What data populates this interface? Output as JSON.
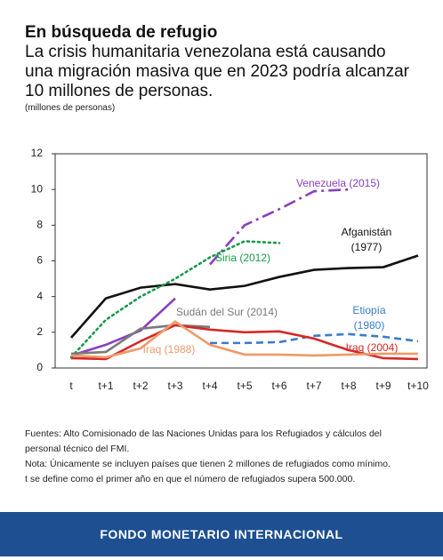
{
  "chart_data": {
    "type": "line",
    "title": "En búsqueda de refugio",
    "subtitle": "La crisis humanitaria venezolana está causando una migración masiva que en 2023 podría alcanzar 10 millones de personas.",
    "y_label": "(millones de personas)",
    "categories": [
      "t",
      "t+1",
      "t+2",
      "t+3",
      "t+4",
      "t+5",
      "t+6",
      "t+7",
      "t+8",
      "t+9",
      "t+10"
    ],
    "ylim": [
      0,
      12
    ],
    "yticks": [
      0,
      2,
      4,
      6,
      8,
      10,
      12
    ],
    "grid": false,
    "series": [
      {
        "name": "Afganistán (1977)",
        "color": "#111111",
        "style": "solid",
        "values": [
          1.7,
          3.9,
          4.5,
          4.7,
          4.4,
          4.6,
          5.1,
          5.5,
          5.6,
          5.65,
          6.3
        ]
      },
      {
        "name": "Venezuela (2015)",
        "color": "#8a3fbf",
        "style": "solid",
        "projected_from": 4,
        "values": [
          0.7,
          1.3,
          2.1,
          3.9,
          5.8,
          8.0,
          8.9,
          9.9,
          10.0,
          null,
          null
        ]
      },
      {
        "name": "Siria (2012)",
        "color": "#1a9a4a",
        "style": "dotted",
        "values": [
          0.6,
          2.7,
          4.0,
          5.0,
          6.2,
          7.1,
          7.0,
          null,
          null,
          null,
          null
        ]
      },
      {
        "name": "Sudán del Sur (2014)",
        "color": "#7a7a7a",
        "style": "solid",
        "values": [
          0.8,
          0.9,
          2.2,
          2.4,
          2.3,
          null,
          null,
          null,
          null,
          null,
          null
        ]
      },
      {
        "name": "Etiopía (1980)",
        "color": "#3a7cc8",
        "style": "dashed",
        "values": [
          null,
          null,
          null,
          null,
          1.4,
          1.4,
          1.45,
          1.8,
          1.9,
          1.75,
          1.5
        ]
      },
      {
        "name": "Iraq (2004)",
        "color": "#d62828",
        "style": "solid",
        "values": [
          0.55,
          0.5,
          1.5,
          2.4,
          2.15,
          2.0,
          2.05,
          1.65,
          1.0,
          0.55,
          0.5
        ]
      },
      {
        "name": "Iraq (1988)",
        "color": "#ee9a6a",
        "style": "solid",
        "values": [
          0.7,
          0.6,
          1.1,
          2.6,
          1.3,
          0.75,
          0.75,
          0.7,
          0.75,
          0.8,
          0.8
        ]
      }
    ]
  },
  "notes": [
    "Fuentes: Alto Comisionado de las Naciones Unidas para los Refugiados y cálculos del personal técnico del FMI.",
    "Nota: Únicamente se incluyen países que tienen 2 millones de refugiados como mínimo.",
    "t se define como el primer año en que el número de refugiados supera 500.000."
  ],
  "footer": "FONDO MONETARIO INTERNACIONAL"
}
